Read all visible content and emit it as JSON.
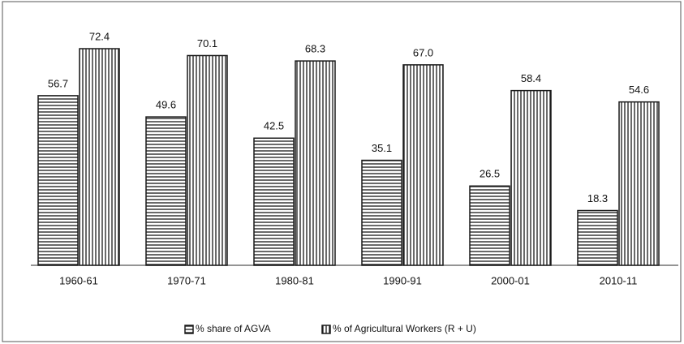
{
  "chart_data": {
    "type": "bar",
    "categories": [
      "1960-61",
      "1970-71",
      "1980-81",
      "1990-91",
      "2000-01",
      "2010-11"
    ],
    "series": [
      {
        "name": "% share of AGVA",
        "color": "#1a1a1a",
        "pattern": "horizontal",
        "values": [
          56.7,
          49.6,
          42.5,
          35.1,
          26.5,
          18.3
        ],
        "value_labels": [
          "56.7",
          "49.6",
          "42.5",
          "35.1",
          "26.5",
          "18.3"
        ]
      },
      {
        "name": "% of Agricultural Workers (R + U)",
        "color": "#1a1a1a",
        "pattern": "vertical",
        "values": [
          72.4,
          70.1,
          68.3,
          67.0,
          58.4,
          54.6
        ],
        "value_labels": [
          "72.4",
          "70.1",
          "68.3",
          "67.0",
          "58.4",
          "54.6"
        ]
      }
    ],
    "legend": "bottom"
  }
}
